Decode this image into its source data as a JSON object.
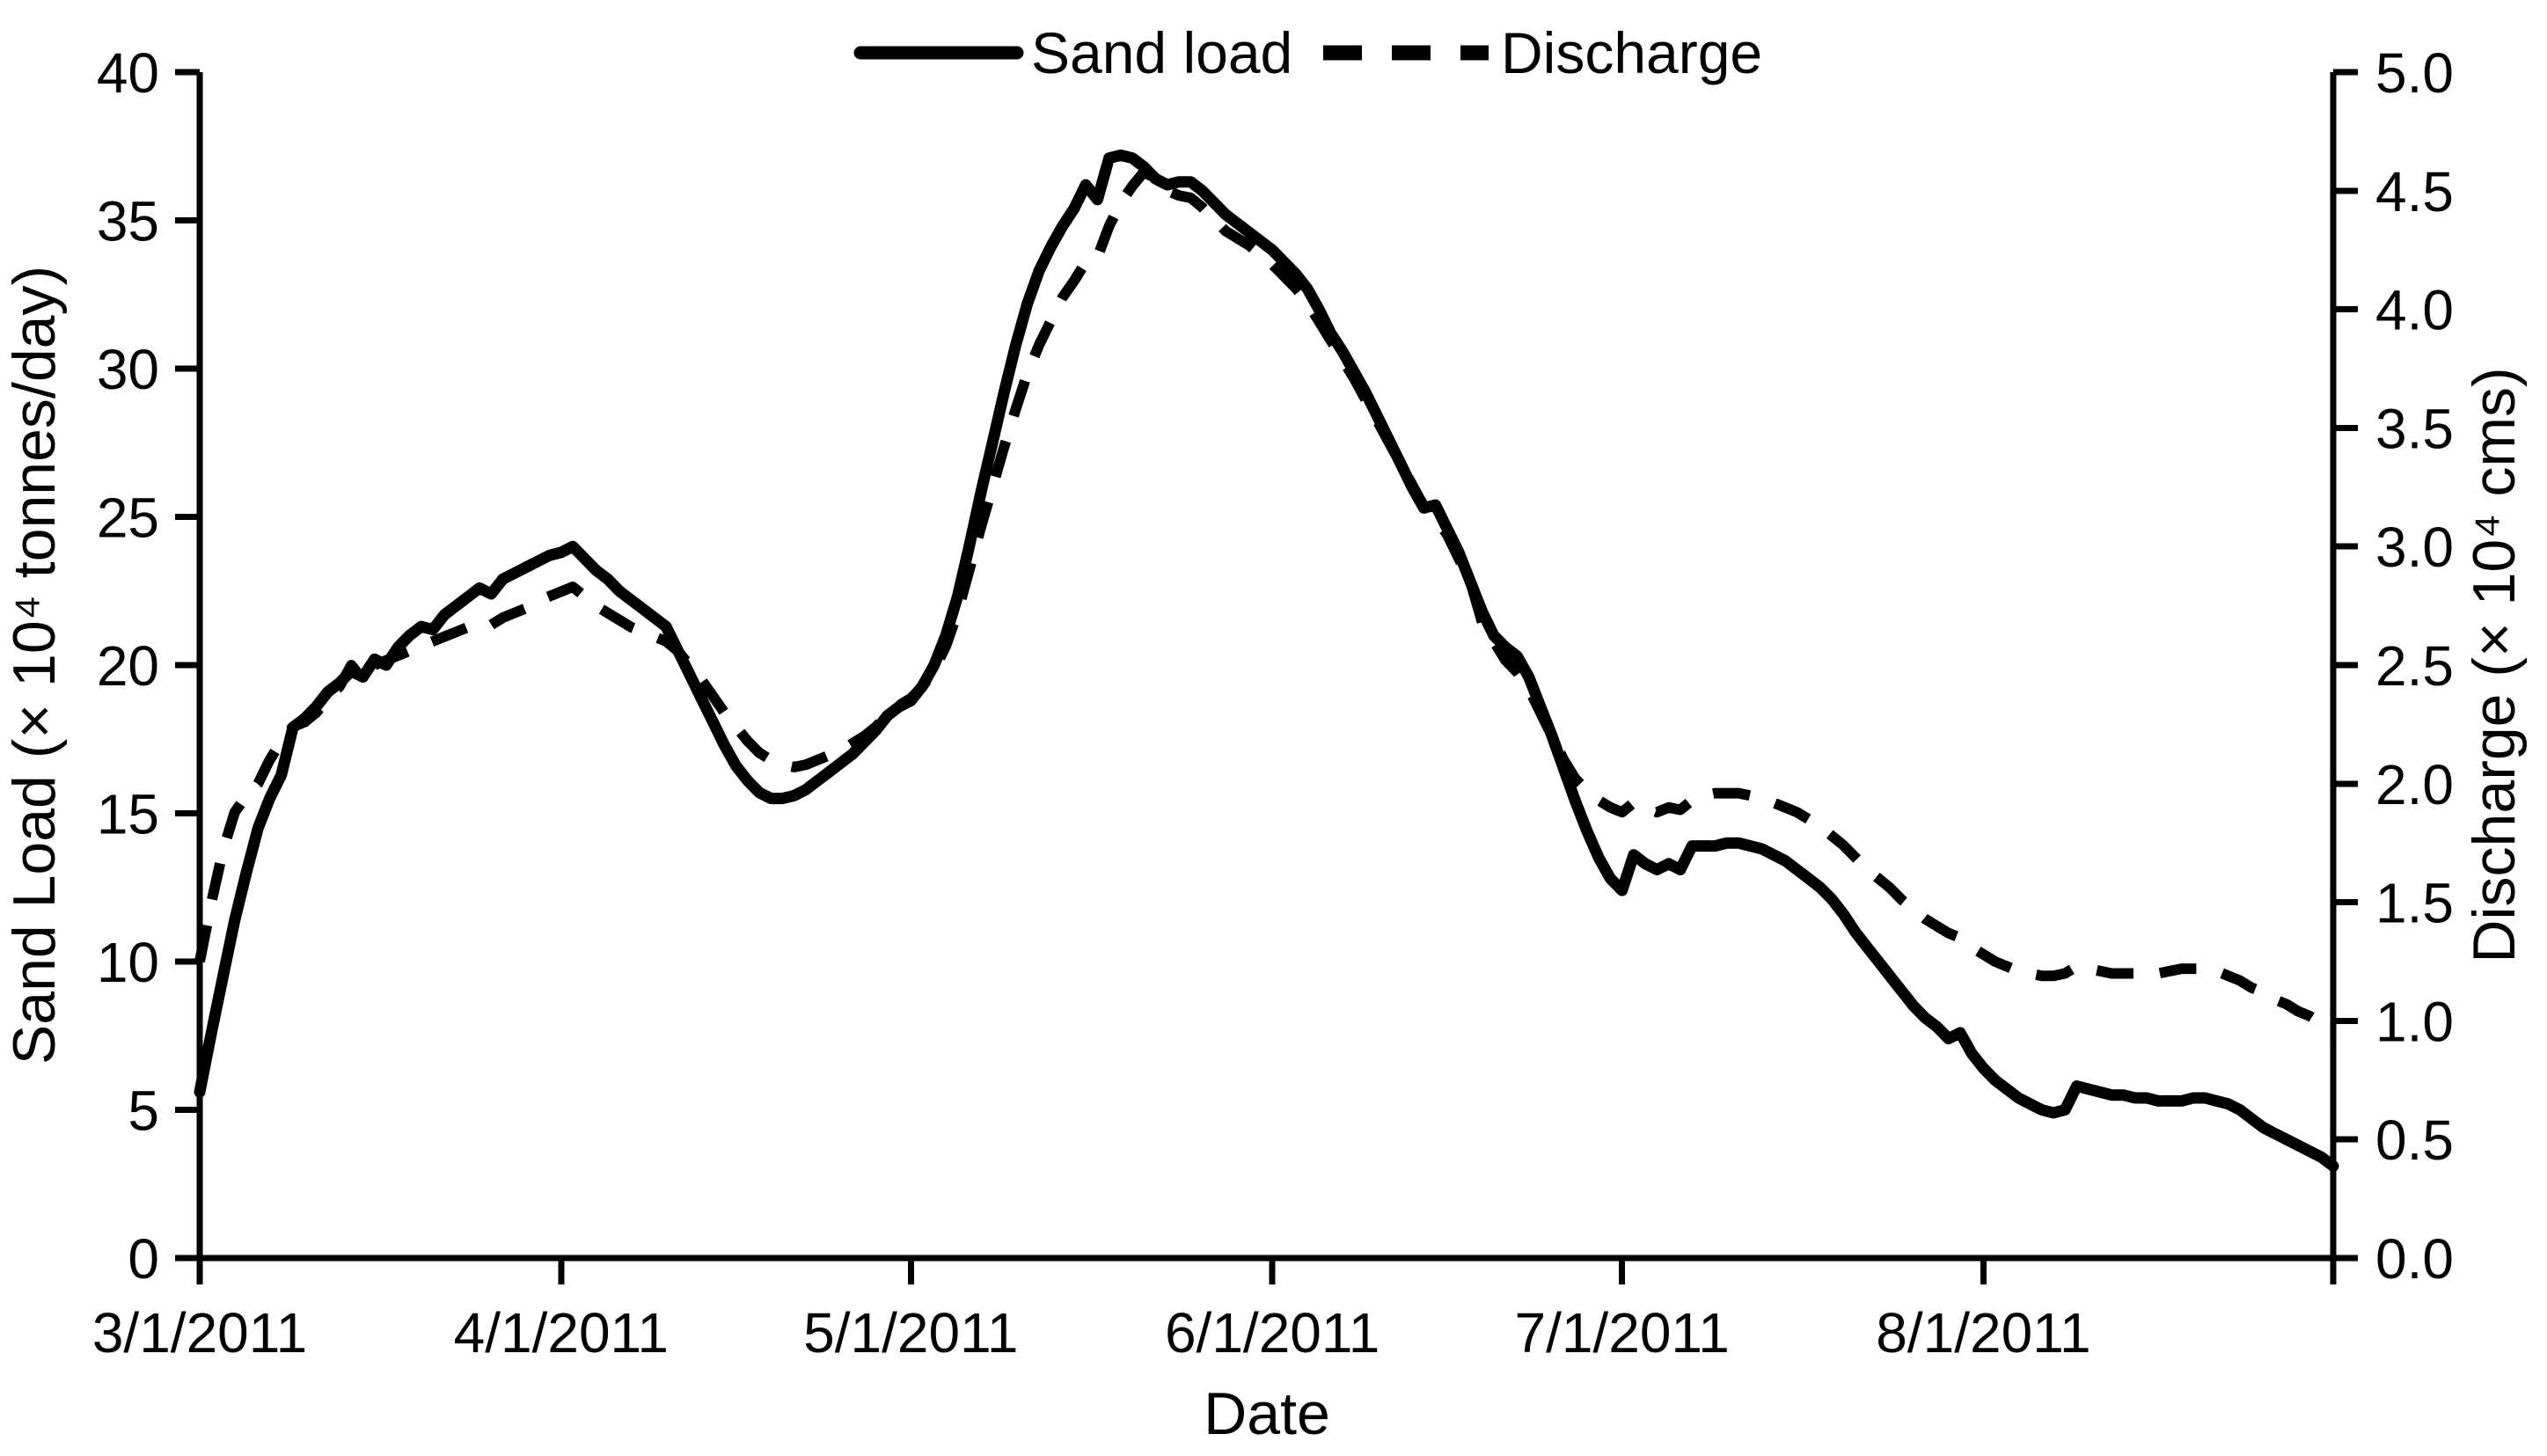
{
  "figure": {
    "background": "#ffffff",
    "line_color": "#000000"
  },
  "chart_data": {
    "type": "line",
    "title": "",
    "grid": false,
    "legend_position": "top-center",
    "x_axis": {
      "label": "Date",
      "start": "3/1/2011",
      "end": "8/31/2011",
      "n_points": 184,
      "tick_indices": [
        0,
        31,
        61,
        92,
        122,
        153,
        183
      ],
      "tick_labels": [
        "3/1/2011",
        "4/1/2011",
        "5/1/2011",
        "6/1/2011",
        "7/1/2011",
        "8/1/2011",
        ""
      ]
    },
    "y_left": {
      "label": "Sand Load (× 10⁴ tonnes/day)",
      "min": 0,
      "max": 40,
      "step": 5,
      "ticks": [
        "0",
        "5",
        "10",
        "15",
        "20",
        "25",
        "30",
        "35",
        "40"
      ]
    },
    "y_right": {
      "label": "Discharge (× 10⁴ cms)",
      "min": 0,
      "max": 5,
      "step": 0.5,
      "ticks": [
        "0.0",
        "0.5",
        "1.0",
        "1.5",
        "2.0",
        "2.5",
        "3.0",
        "3.5",
        "4.0",
        "4.5",
        "5.0"
      ]
    },
    "series": [
      {
        "name": "Sand load",
        "axis": "left",
        "line_style": "solid",
        "color": "#000000",
        "values": [
          5.6,
          7.6,
          9.5,
          11.4,
          13.0,
          14.5,
          15.5,
          16.3,
          17.9,
          18.2,
          18.6,
          19.1,
          19.4,
          19.8,
          19.6,
          20.2,
          20.0,
          20.6,
          21.0,
          21.3,
          21.2,
          21.7,
          22.0,
          22.3,
          22.6,
          22.4,
          22.9,
          23.1,
          23.3,
          23.5,
          23.7,
          23.8,
          24.0,
          23.6,
          23.2,
          22.9,
          22.5,
          22.2,
          21.9,
          21.6,
          21.3,
          20.5,
          19.7,
          18.9,
          18.1,
          17.3,
          16.6,
          16.1,
          15.7,
          15.5,
          15.5,
          15.6,
          15.8,
          16.1,
          16.4,
          16.7,
          17.0,
          17.4,
          17.8,
          18.3,
          18.6,
          18.8,
          19.3,
          20.0,
          21.0,
          22.3,
          24.0,
          25.8,
          27.5,
          29.2,
          30.8,
          32.2,
          33.3,
          34.1,
          34.8,
          35.4,
          36.2,
          35.7,
          37.1,
          37.2,
          37.1,
          36.8,
          36.4,
          36.2,
          36.3,
          36.3,
          36.0,
          35.6,
          35.2,
          34.9,
          34.6,
          34.3,
          34.0,
          33.6,
          33.2,
          32.7,
          32.0,
          31.2,
          30.6,
          29.9,
          29.2,
          28.4,
          27.6,
          26.8,
          26.0,
          25.3,
          25.4,
          24.6,
          23.8,
          22.8,
          21.8,
          21.0,
          20.6,
          20.3,
          19.6,
          18.6,
          17.6,
          16.5,
          15.4,
          14.4,
          13.5,
          12.8,
          12.4,
          13.6,
          13.3,
          13.1,
          13.3,
          13.1,
          13.9,
          13.9,
          13.9,
          14.0,
          14.0,
          13.9,
          13.8,
          13.6,
          13.4,
          13.1,
          12.8,
          12.5,
          12.1,
          11.6,
          11.0,
          10.5,
          10.0,
          9.5,
          9.0,
          8.5,
          8.1,
          7.8,
          7.4,
          7.6,
          6.9,
          6.4,
          6.0,
          5.7,
          5.4,
          5.2,
          5.0,
          4.9,
          5.0,
          5.8,
          5.7,
          5.6,
          5.5,
          5.5,
          5.4,
          5.4,
          5.3,
          5.3,
          5.3,
          5.4,
          5.4,
          5.3,
          5.2,
          5.0,
          4.7,
          4.4,
          4.2,
          4.0,
          3.8,
          3.6,
          3.4,
          3.1
        ]
      },
      {
        "name": "Discharge",
        "axis": "right",
        "line_style": "dashed",
        "color": "#000000",
        "values": [
          1.25,
          1.5,
          1.72,
          1.88,
          1.95,
          2.0,
          2.1,
          2.18,
          2.24,
          2.26,
          2.3,
          2.36,
          2.41,
          2.5,
          2.44,
          2.5,
          2.52,
          2.54,
          2.56,
          2.58,
          2.6,
          2.62,
          2.64,
          2.66,
          2.68,
          2.67,
          2.7,
          2.72,
          2.74,
          2.77,
          2.79,
          2.81,
          2.83,
          2.79,
          2.75,
          2.72,
          2.69,
          2.66,
          2.64,
          2.62,
          2.6,
          2.56,
          2.5,
          2.44,
          2.37,
          2.3,
          2.24,
          2.18,
          2.13,
          2.1,
          2.08,
          2.07,
          2.08,
          2.1,
          2.12,
          2.14,
          2.17,
          2.2,
          2.24,
          2.29,
          2.33,
          2.36,
          2.41,
          2.48,
          2.58,
          2.72,
          2.9,
          3.08,
          3.25,
          3.42,
          3.58,
          3.73,
          3.85,
          3.95,
          4.05,
          4.12,
          4.2,
          4.22,
          4.35,
          4.45,
          4.52,
          4.58,
          4.55,
          4.5,
          4.48,
          4.47,
          4.43,
          4.38,
          4.33,
          4.3,
          4.27,
          4.23,
          4.19,
          4.14,
          4.09,
          4.03,
          3.95,
          3.87,
          3.79,
          3.71,
          3.62,
          3.53,
          3.44,
          3.35,
          3.26,
          3.17,
          3.12,
          3.05,
          2.95,
          2.85,
          2.68,
          2.6,
          2.52,
          2.47,
          2.4,
          2.3,
          2.2,
          2.1,
          2.02,
          1.97,
          1.93,
          1.9,
          1.88,
          1.92,
          1.9,
          1.88,
          1.9,
          1.89,
          1.93,
          1.95,
          1.96,
          1.96,
          1.96,
          1.95,
          1.94,
          1.92,
          1.9,
          1.88,
          1.85,
          1.82,
          1.78,
          1.74,
          1.69,
          1.64,
          1.6,
          1.56,
          1.51,
          1.47,
          1.43,
          1.4,
          1.37,
          1.35,
          1.31,
          1.28,
          1.25,
          1.23,
          1.21,
          1.2,
          1.19,
          1.19,
          1.2,
          1.23,
          1.22,
          1.21,
          1.2,
          1.2,
          1.2,
          1.2,
          1.2,
          1.21,
          1.22,
          1.22,
          1.22,
          1.21,
          1.19,
          1.17,
          1.14,
          1.12,
          1.09,
          1.07,
          1.04,
          1.02,
          0.99,
          0.95
        ]
      }
    ]
  }
}
